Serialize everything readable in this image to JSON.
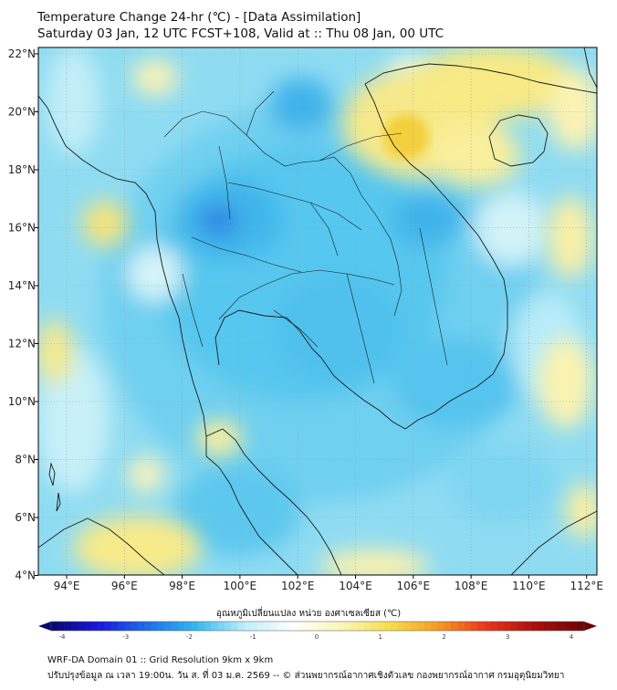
{
  "title_line1": "Temperature Change 24-hr (℃) - [Data Assimilation]",
  "title_line2": "Saturday 03 Jan, 12 UTC FCST+108, Valid at :: Thu 08 Jan, 00 UTC",
  "lon_ticks": [
    "94°E",
    "96°E",
    "98°E",
    "100°E",
    "102°E",
    "104°E",
    "106°E",
    "108°E",
    "110°E",
    "112°E"
  ],
  "lat_ticks": [
    "22°N",
    "20°N",
    "18°N",
    "16°N",
    "14°N",
    "12°N",
    "10°N",
    "8°N",
    "6°N",
    "4°N"
  ],
  "colorbar": {
    "label": "อุณหภูมิเปลี่ยนแปลง หน่วย องศาเซลเซียส (℃)",
    "ticks": [
      "-4",
      "-3",
      "-2",
      "-1",
      "0",
      "1",
      "2",
      "3",
      "4"
    ],
    "min": -4,
    "max": 4,
    "colors": [
      "#08086e",
      "#1a1adc",
      "#1f6fe8",
      "#35b8ee",
      "#bfeefb",
      "#ffffff",
      "#fbf5b8",
      "#f7dd49",
      "#f39a22",
      "#e8341c",
      "#a8100f",
      "#6b0505"
    ]
  },
  "footer_line1": "WRF-DA Domain 01 :: Grid Resolution 9km x 9km",
  "footer_line2": "ปรับปรุงข้อมูล ณ เวลา 19:00น. วัน ส. ที่ 03 ม.ค. 2569 -- © ส่วนพยากรณ์อากาศเชิงตัวเลข กองพยากรณ์อากาศ กรมอุตุนิยมวิทยา"
}
